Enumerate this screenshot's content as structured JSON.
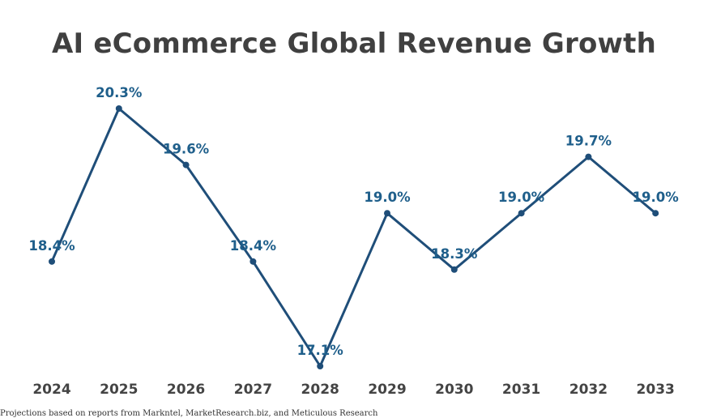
{
  "colors": {
    "line": "#1f4e79",
    "label": "#1f5f8b",
    "tick": "#444444",
    "title": "#404040"
  },
  "chart_data": {
    "type": "line",
    "title": "AI eCommerce Global Revenue Growth",
    "xlabel": "",
    "ylabel": "",
    "categories": [
      "2024",
      "2025",
      "2026",
      "2027",
      "2028",
      "2029",
      "2030",
      "2031",
      "2032",
      "2033"
    ],
    "values": [
      18.4,
      20.3,
      19.6,
      18.4,
      17.1,
      19.0,
      18.3,
      19.0,
      19.7,
      19.0
    ],
    "data_labels": [
      "18.4%",
      "20.3%",
      "19.6%",
      "18.4%",
      "17.1%",
      "19.0%",
      "18.3%",
      "19.0%",
      "19.7%",
      "19.0%"
    ],
    "ylim": [
      17.1,
      20.3
    ],
    "grid": false,
    "legend": "none"
  },
  "footnote": "Projections based on reports from Markntel, MarketResearch.biz, and Meticulous Research"
}
